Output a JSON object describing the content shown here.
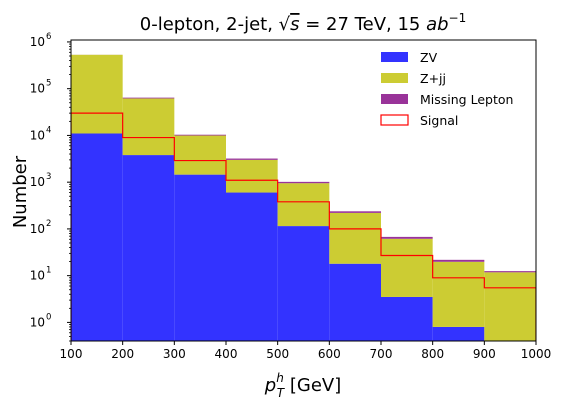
{
  "chart_data": {
    "type": "bar",
    "subtype": "stacked-histogram",
    "title_parts": {
      "pre": "0-lepton, 2-jet, ",
      "sqrt_s": "s",
      "mid": " = 27 TeV, 15 ",
      "unit": "ab",
      "unit_exp": "−1"
    },
    "ylabel": "Number",
    "xlabel_parts": {
      "p": "p",
      "sup": "h",
      "sub": "T",
      "rest": " [GeV]"
    },
    "yscale": "log",
    "xlim": [
      100,
      1000
    ],
    "ylim": [
      0.4,
      1100000
    ],
    "x_ticks": [
      "100",
      "200",
      "300",
      "400",
      "500",
      "600",
      "700",
      "800",
      "900",
      "1000"
    ],
    "y_ticks": [
      {
        "value": 1,
        "base": "10",
        "exp": "0"
      },
      {
        "value": 10,
        "base": "10",
        "exp": "1"
      },
      {
        "value": 100,
        "base": "10",
        "exp": "2"
      },
      {
        "value": 1000,
        "base": "10",
        "exp": "3"
      },
      {
        "value": 10000,
        "base": "10",
        "exp": "4"
      },
      {
        "value": 100000,
        "base": "10",
        "exp": "5"
      },
      {
        "value": 1000000,
        "base": "10",
        "exp": "6"
      }
    ],
    "bin_edges": [
      100,
      200,
      300,
      400,
      500,
      600,
      700,
      800,
      900,
      1000
    ],
    "series": [
      {
        "name": "ZV",
        "kind": "stacked",
        "color": "#3333ff",
        "values": [
          11000,
          3800,
          1450,
          600,
          115,
          18,
          3.5,
          0.8,
          0.3
        ]
      },
      {
        "name": "Z+jj",
        "kind": "stacked",
        "color": "#cccc33",
        "values": [
          520000,
          58000,
          8500,
          2400,
          835,
          202,
          58,
          19,
          11.5
        ]
      },
      {
        "name": "Missing Lepton",
        "kind": "stacked",
        "color": "#993399",
        "values": [
          1000,
          2500,
          400,
          200,
          65,
          18,
          6,
          2,
          0.7
        ]
      },
      {
        "name": "Signal",
        "kind": "step",
        "color": "#ff0000",
        "values": [
          30000,
          9000,
          2900,
          1100,
          380,
          100,
          27,
          9,
          5.5
        ]
      }
    ],
    "legend_position": "top-right"
  }
}
